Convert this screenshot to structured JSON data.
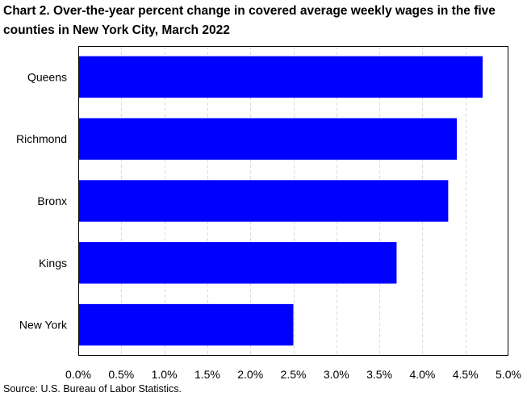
{
  "title": "Chart 2. Over-the-year percent change in covered average weekly wages in the five counties in New York City, March 2022",
  "source": "Source: U.S. Bureau of Labor Statistics.",
  "colors": {
    "bar": "#0000FF",
    "grid": "#D9D9D9",
    "border": "#000000"
  },
  "chart_data": {
    "type": "bar",
    "orientation": "horizontal",
    "title": "Chart 2. Over-the-year percent change in covered average weekly wages in the five counties in New York City, March 2022",
    "categories": [
      "Queens",
      "Richmond",
      "Bronx",
      "Kings",
      "New York"
    ],
    "values": [
      4.7,
      4.4,
      4.3,
      3.7,
      2.5
    ],
    "unit": "%",
    "xlim": [
      0,
      5
    ],
    "x_ticks": [
      "0.0%",
      "0.5%",
      "1.0%",
      "1.5%",
      "2.0%",
      "2.5%",
      "3.0%",
      "3.5%",
      "4.0%",
      "4.5%",
      "5.0%"
    ],
    "x_tick_values": [
      0,
      0.5,
      1,
      1.5,
      2,
      2.5,
      3,
      3.5,
      4,
      4.5,
      5
    ],
    "grid": "vertical-dashed",
    "legend": "none"
  }
}
